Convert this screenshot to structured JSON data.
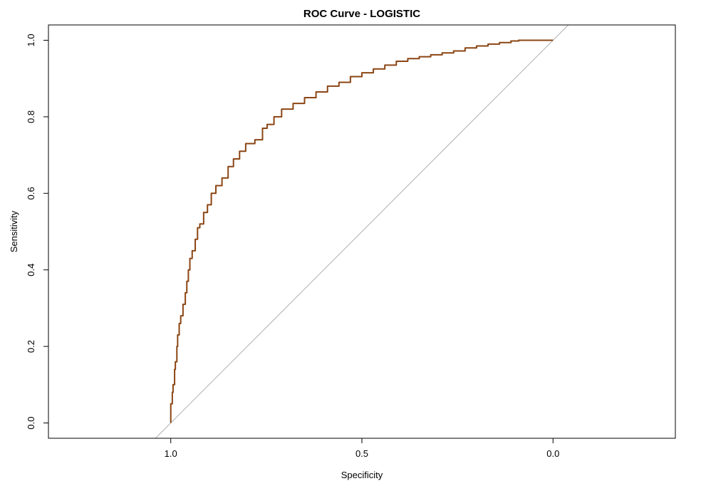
{
  "chart_data": {
    "type": "line",
    "title": "ROC Curve - LOGISTIC",
    "xlabel": "Specificity",
    "ylabel": "Sensitivity",
    "x_reversed": true,
    "xlim": [
      1.32,
      -0.32
    ],
    "ylim": [
      -0.04,
      1.04
    ],
    "x_ticks": [
      {
        "value": 1.0,
        "label": "1.0"
      },
      {
        "value": 0.5,
        "label": "0.5"
      },
      {
        "value": 0.0,
        "label": "0.0"
      }
    ],
    "y_ticks": [
      {
        "value": 0.0,
        "label": "0.0"
      },
      {
        "value": 0.2,
        "label": "0.2"
      },
      {
        "value": 0.4,
        "label": "0.4"
      },
      {
        "value": 0.6,
        "label": "0.6"
      },
      {
        "value": 0.8,
        "label": "0.8"
      },
      {
        "value": 1.0,
        "label": "1.0"
      }
    ],
    "grid": false,
    "series": [
      {
        "color": "#8B4513",
        "points": [
          [
            1.0,
            0.0
          ],
          [
            1.0,
            0.04
          ],
          [
            0.996,
            0.05
          ],
          [
            0.994,
            0.08
          ],
          [
            0.99,
            0.1
          ],
          [
            0.988,
            0.14
          ],
          [
            0.984,
            0.16
          ],
          [
            0.982,
            0.2
          ],
          [
            0.978,
            0.23
          ],
          [
            0.974,
            0.26
          ],
          [
            0.968,
            0.28
          ],
          [
            0.962,
            0.31
          ],
          [
            0.958,
            0.34
          ],
          [
            0.954,
            0.37
          ],
          [
            0.95,
            0.4
          ],
          [
            0.944,
            0.43
          ],
          [
            0.936,
            0.45
          ],
          [
            0.93,
            0.48
          ],
          [
            0.924,
            0.51
          ],
          [
            0.914,
            0.52
          ],
          [
            0.904,
            0.55
          ],
          [
            0.894,
            0.57
          ],
          [
            0.882,
            0.6
          ],
          [
            0.866,
            0.62
          ],
          [
            0.85,
            0.64
          ],
          [
            0.836,
            0.67
          ],
          [
            0.82,
            0.69
          ],
          [
            0.804,
            0.71
          ],
          [
            0.78,
            0.73
          ],
          [
            0.76,
            0.74
          ],
          [
            0.748,
            0.77
          ],
          [
            0.73,
            0.78
          ],
          [
            0.71,
            0.8
          ],
          [
            0.68,
            0.82
          ],
          [
            0.65,
            0.835
          ],
          [
            0.62,
            0.85
          ],
          [
            0.59,
            0.865
          ],
          [
            0.56,
            0.88
          ],
          [
            0.53,
            0.89
          ],
          [
            0.5,
            0.905
          ],
          [
            0.47,
            0.915
          ],
          [
            0.44,
            0.925
          ],
          [
            0.41,
            0.935
          ],
          [
            0.38,
            0.945
          ],
          [
            0.35,
            0.952
          ],
          [
            0.32,
            0.957
          ],
          [
            0.29,
            0.962
          ],
          [
            0.26,
            0.967
          ],
          [
            0.23,
            0.972
          ],
          [
            0.2,
            0.98
          ],
          [
            0.17,
            0.985
          ],
          [
            0.14,
            0.99
          ],
          [
            0.11,
            0.994
          ],
          [
            0.09,
            0.998
          ],
          [
            0.05,
            1.0
          ],
          [
            0.0,
            1.0
          ]
        ]
      }
    ],
    "reference_line": {
      "color": "#b0b0b0",
      "from": [
        1.04,
        -0.04
      ],
      "to": [
        -0.04,
        1.04
      ]
    }
  }
}
